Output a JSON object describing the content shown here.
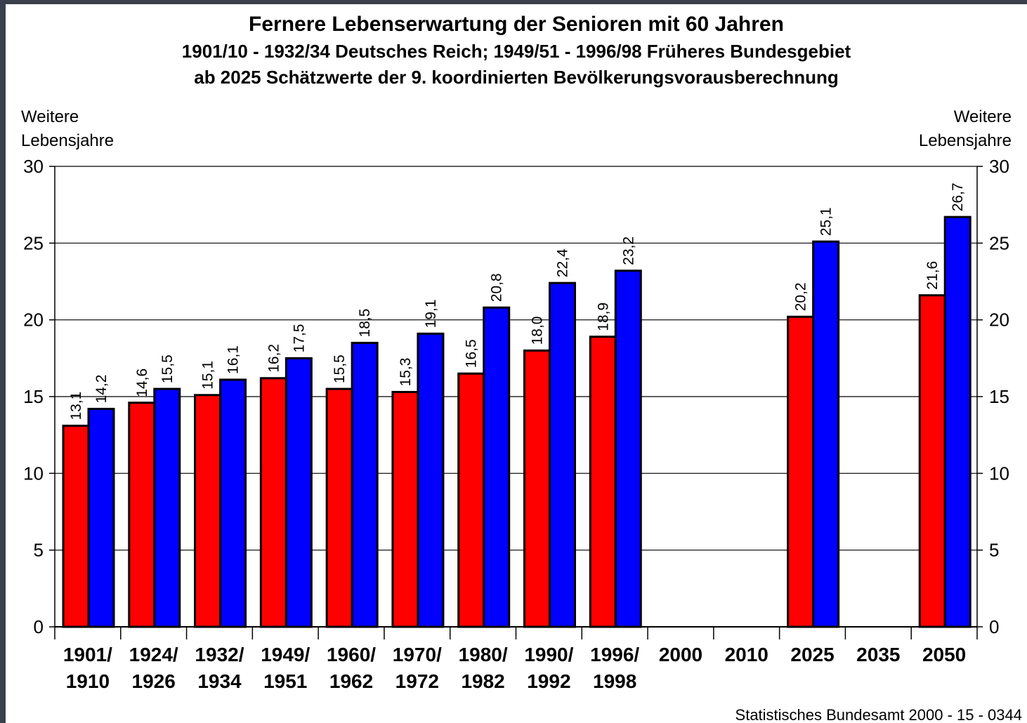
{
  "chart_data": {
    "type": "bar",
    "title": "Fernere Lebenserwartung der Senioren mit 60 Jahren",
    "subtitle": [
      "1901/10 - 1932/34 Deutsches Reich; 1949/51 - 1996/98 Früheres Bundesgebiet",
      "ab 2025 Schätzwerte der 9. koordinierten Bevölkerungsvorausberechnung"
    ],
    "ylabel": "Weitere Lebensjahre",
    "y2label": "Weitere Lebensjahre",
    "source": "Statistisches Bundesamt 2000 - 15 - 0344",
    "categories": [
      "1901/1910",
      "1924/1926",
      "1932/1934",
      "1949/1951",
      "1960/1962",
      "1970/1972",
      "1980/1982",
      "1990/1992",
      "1996/1998",
      "2000",
      "2010",
      "2025",
      "2035",
      "2050"
    ],
    "series": [
      {
        "color": "#ff0000",
        "values": [
          13.1,
          14.6,
          15.1,
          16.2,
          15.5,
          15.3,
          16.5,
          18.0,
          18.9,
          null,
          null,
          20.2,
          null,
          21.6
        ],
        "value_labels": [
          "13,1",
          "14,6",
          "15,1",
          "16,2",
          "15,5",
          "15,3",
          "16,5",
          "18,0",
          "18,9",
          null,
          null,
          "20,2",
          null,
          "21,6"
        ]
      },
      {
        "color": "#0000ff",
        "values": [
          14.2,
          15.5,
          16.1,
          17.5,
          18.5,
          19.1,
          20.8,
          22.4,
          23.2,
          null,
          null,
          25.1,
          null,
          26.7
        ],
        "value_labels": [
          "14,2",
          "15,5",
          "16,1",
          "17,5",
          "18,5",
          "19,1",
          "20,8",
          "22,4",
          "23,2",
          null,
          null,
          "25,1",
          null,
          "26,7"
        ]
      }
    ],
    "ylim": [
      0,
      30
    ],
    "yticks": [
      0,
      5,
      10,
      15,
      20,
      25,
      30
    ],
    "y2lim": [
      0,
      30
    ],
    "y2ticks": [
      0,
      5,
      10,
      15,
      20,
      25,
      30
    ],
    "grid": true
  }
}
